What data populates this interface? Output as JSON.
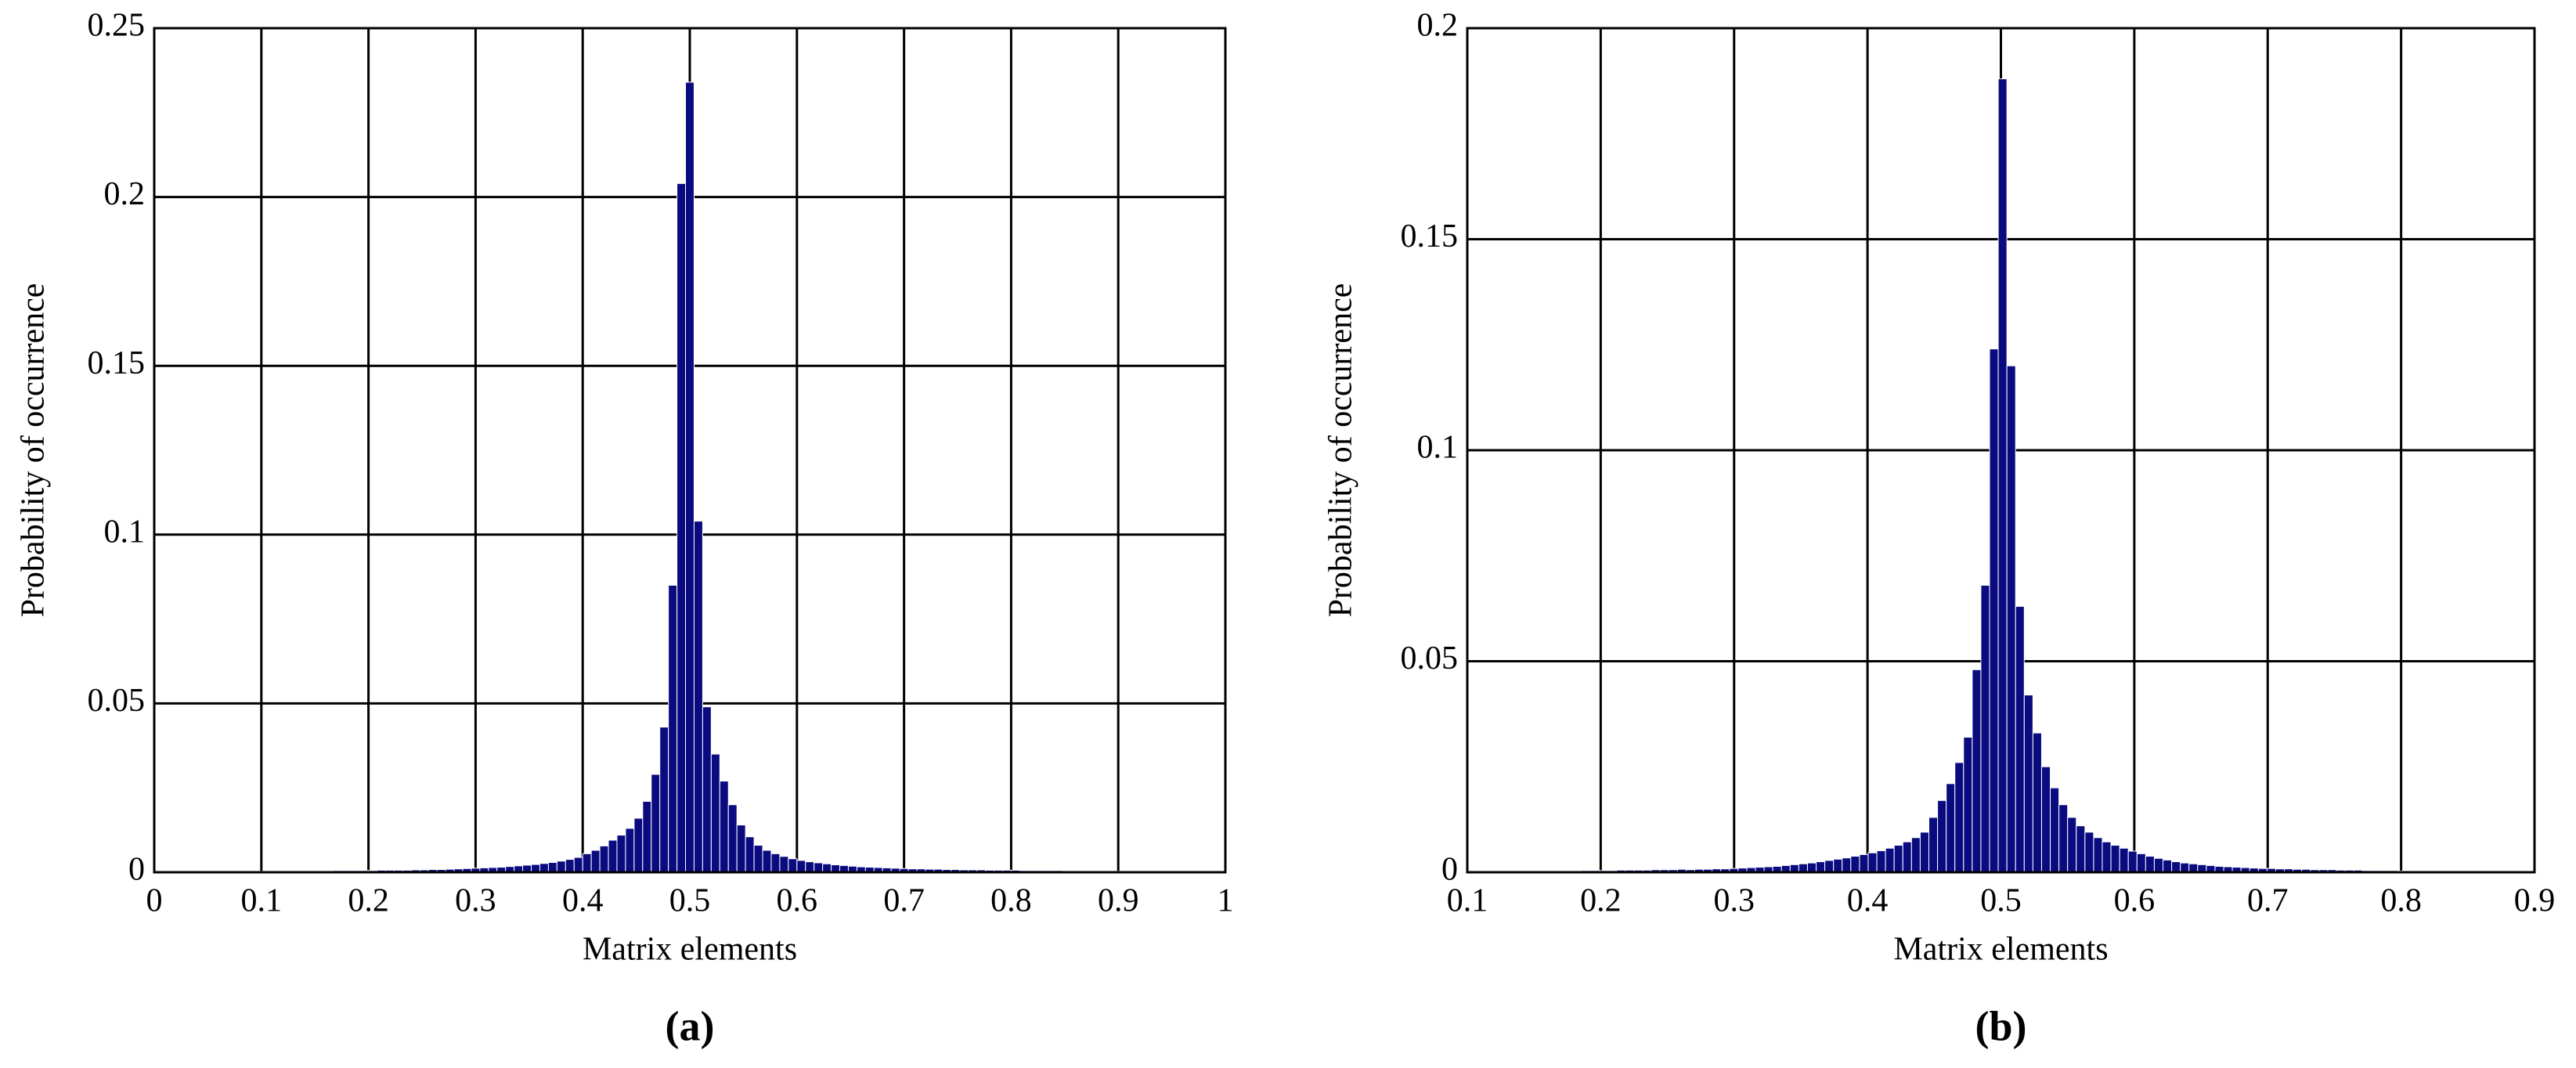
{
  "chart_data": [
    {
      "type": "histogram",
      "label": "(a)",
      "x_label": "Matrix elements",
      "y_label": "Probability of occurrence",
      "color": "#0b0b80",
      "grid": true,
      "xlim": [
        0,
        1
      ],
      "ylim": [
        0,
        0.25
      ],
      "xticks": [
        0,
        0.1,
        0.2,
        0.3,
        0.4,
        0.5,
        0.6,
        0.7,
        0.8,
        0.9,
        1
      ],
      "yticks": [
        0,
        0.05,
        0.1,
        0.15,
        0.2,
        0.25
      ],
      "bins": [
        0.08,
        0.088,
        0.096,
        0.104,
        0.112,
        0.12,
        0.128,
        0.136,
        0.144,
        0.152,
        0.16,
        0.168,
        0.176,
        0.184,
        0.192,
        0.2,
        0.208,
        0.216,
        0.224,
        0.232,
        0.24,
        0.248,
        0.256,
        0.264,
        0.272,
        0.28,
        0.288,
        0.296,
        0.304,
        0.312,
        0.32,
        0.328,
        0.336,
        0.344,
        0.352,
        0.36,
        0.368,
        0.376,
        0.384,
        0.392,
        0.4,
        0.408,
        0.416,
        0.424,
        0.432,
        0.44,
        0.448,
        0.456,
        0.464,
        0.472,
        0.48,
        0.488,
        0.496,
        0.504,
        0.512,
        0.52,
        0.528,
        0.536,
        0.544,
        0.552,
        0.56,
        0.568,
        0.576,
        0.584,
        0.592,
        0.6,
        0.608,
        0.616,
        0.624,
        0.632,
        0.64,
        0.648,
        0.656,
        0.664,
        0.672,
        0.68,
        0.688,
        0.696,
        0.704,
        0.712,
        0.72,
        0.728,
        0.736,
        0.744,
        0.752,
        0.76,
        0.768,
        0.776,
        0.784,
        0.792,
        0.8,
        0.808,
        0.816,
        0.824,
        0.832,
        0.84,
        0.848,
        0.856,
        0.864,
        0.872,
        0.88,
        0.888,
        0.896,
        0.904,
        0.912,
        0.92,
        0.928
      ],
      "values": [
        0.0003,
        0.0003,
        0.0003,
        0.0003,
        0.0003,
        0.0004,
        0.0004,
        0.0004,
        0.0004,
        0.0004,
        0.0004,
        0.0005,
        0.0005,
        0.0005,
        0.0005,
        0.0005,
        0.0006,
        0.0006,
        0.0006,
        0.0006,
        0.0007,
        0.0007,
        0.0008,
        0.0008,
        0.0009,
        0.001,
        0.0011,
        0.0012,
        0.0013,
        0.0014,
        0.0015,
        0.0017,
        0.0019,
        0.0021,
        0.0023,
        0.0026,
        0.0029,
        0.0033,
        0.0038,
        0.0044,
        0.0055,
        0.0065,
        0.0078,
        0.0095,
        0.011,
        0.013,
        0.016,
        0.021,
        0.029,
        0.043,
        0.085,
        0.204,
        0.234,
        0.104,
        0.049,
        0.035,
        0.027,
        0.02,
        0.014,
        0.0105,
        0.008,
        0.0065,
        0.0055,
        0.0047,
        0.004,
        0.0035,
        0.0031,
        0.0028,
        0.0025,
        0.0022,
        0.002,
        0.0018,
        0.0016,
        0.0015,
        0.0014,
        0.0013,
        0.0012,
        0.0011,
        0.001,
        0.001,
        0.0009,
        0.0009,
        0.0008,
        0.0008,
        0.0007,
        0.0007,
        0.0007,
        0.0006,
        0.0006,
        0.0006,
        0.0006,
        0.0005,
        0.0005,
        0.0005,
        0.0005,
        0.0005,
        0.0004,
        0.0004,
        0.0004,
        0.0004,
        0.0004,
        0.0003,
        0.0003,
        0.0003,
        0.0003,
        0.0003
      ]
    },
    {
      "type": "histogram",
      "label": "(b)",
      "x_label": "Matrix elements",
      "y_label": "Probability of occurrence",
      "color": "#0b0b80",
      "grid": true,
      "xlim": [
        0.1,
        0.9
      ],
      "ylim": [
        0,
        0.2
      ],
      "xticks": [
        0.1,
        0.2,
        0.3,
        0.4,
        0.5,
        0.6,
        0.7,
        0.8,
        0.9
      ],
      "yticks": [
        0,
        0.05,
        0.1,
        0.15,
        0.2
      ],
      "bins": [
        0.134,
        0.1405,
        0.147,
        0.1535,
        0.16,
        0.1665,
        0.173,
        0.1795,
        0.186,
        0.1925,
        0.199,
        0.2055,
        0.212,
        0.2185,
        0.225,
        0.2315,
        0.238,
        0.2445,
        0.251,
        0.2575,
        0.264,
        0.2705,
        0.277,
        0.2835,
        0.29,
        0.2965,
        0.303,
        0.3095,
        0.316,
        0.3225,
        0.329,
        0.3355,
        0.342,
        0.3485,
        0.355,
        0.3615,
        0.368,
        0.3745,
        0.381,
        0.3875,
        0.394,
        0.4005,
        0.407,
        0.4135,
        0.42,
        0.4265,
        0.433,
        0.4395,
        0.446,
        0.4525,
        0.459,
        0.4655,
        0.472,
        0.4785,
        0.485,
        0.4915,
        0.498,
        0.5045,
        0.511,
        0.5175,
        0.524,
        0.5305,
        0.537,
        0.5435,
        0.55,
        0.5565,
        0.563,
        0.5695,
        0.576,
        0.5825,
        0.589,
        0.5955,
        0.602,
        0.6085,
        0.615,
        0.6215,
        0.628,
        0.6345,
        0.641,
        0.6475,
        0.654,
        0.6605,
        0.667,
        0.6735,
        0.68,
        0.6865,
        0.693,
        0.6995,
        0.706,
        0.7125,
        0.719,
        0.7255,
        0.732,
        0.7385,
        0.745,
        0.7515,
        0.758,
        0.7645,
        0.771,
        0.7775,
        0.784,
        0.7905,
        0.797,
        0.8035,
        0.81,
        0.8165,
        0.823,
        0.8295,
        0.836,
        0.8425,
        0.849
      ],
      "values": [
        0.0002,
        0.0002,
        0.0002,
        0.0003,
        0.0003,
        0.0003,
        0.0003,
        0.0003,
        0.0004,
        0.0004,
        0.0004,
        0.0004,
        0.0005,
        0.0005,
        0.0005,
        0.0005,
        0.0006,
        0.0006,
        0.0006,
        0.0007,
        0.0006,
        0.0007,
        0.0007,
        0.0008,
        0.0008,
        0.0009,
        0.001,
        0.0011,
        0.0012,
        0.0013,
        0.0014,
        0.0016,
        0.0018,
        0.002,
        0.0022,
        0.0025,
        0.0028,
        0.0031,
        0.0034,
        0.0038,
        0.0042,
        0.0046,
        0.0051,
        0.0057,
        0.0064,
        0.0072,
        0.0082,
        0.0095,
        0.013,
        0.017,
        0.021,
        0.026,
        0.032,
        0.048,
        0.068,
        0.124,
        0.188,
        0.12,
        0.063,
        0.042,
        0.033,
        0.025,
        0.02,
        0.016,
        0.013,
        0.011,
        0.0095,
        0.0082,
        0.0072,
        0.0064,
        0.0057,
        0.005,
        0.0044,
        0.0038,
        0.0033,
        0.0029,
        0.0025,
        0.0022,
        0.002,
        0.0018,
        0.0016,
        0.0014,
        0.0013,
        0.0012,
        0.0011,
        0.001,
        0.0009,
        0.0009,
        0.0008,
        0.0008,
        0.0007,
        0.0007,
        0.0006,
        0.0006,
        0.0006,
        0.0005,
        0.0005,
        0.0005,
        0.0004,
        0.0004,
        0.0004,
        0.0004,
        0.0003,
        0.0003,
        0.0003,
        0.0003,
        0.0003,
        0.0002,
        0.0002,
        0.0002
      ]
    }
  ]
}
